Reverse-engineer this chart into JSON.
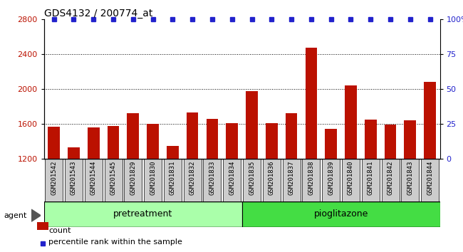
{
  "title": "GDS4132 / 200774_at",
  "samples": [
    "GSM201542",
    "GSM201543",
    "GSM201544",
    "GSM201545",
    "GSM201829",
    "GSM201830",
    "GSM201831",
    "GSM201832",
    "GSM201833",
    "GSM201834",
    "GSM201835",
    "GSM201836",
    "GSM201837",
    "GSM201838",
    "GSM201839",
    "GSM201840",
    "GSM201841",
    "GSM201842",
    "GSM201843",
    "GSM201844"
  ],
  "counts": [
    1565,
    1330,
    1560,
    1575,
    1720,
    1600,
    1350,
    1730,
    1660,
    1610,
    1970,
    1610,
    1720,
    2470,
    1540,
    2040,
    1650,
    1590,
    1640,
    2080
  ],
  "groups": [
    {
      "label": "pretreatment",
      "start": 0,
      "end": 10,
      "color": "#AAFFAA"
    },
    {
      "label": "pioglitazone",
      "start": 10,
      "end": 20,
      "color": "#44DD44"
    }
  ],
  "ylim_left": [
    1200,
    2800
  ],
  "ylim_right": [
    0,
    100
  ],
  "yticks_left": [
    1200,
    1600,
    2000,
    2400,
    2800
  ],
  "yticks_right": [
    0,
    25,
    50,
    75,
    100
  ],
  "bar_color": "#BB1100",
  "dot_color": "#2222CC",
  "tick_bg_color": "#CCCCCC",
  "agent_label": "agent",
  "legend_count_label": "count",
  "legend_percentile_label": "percentile rank within the sample"
}
